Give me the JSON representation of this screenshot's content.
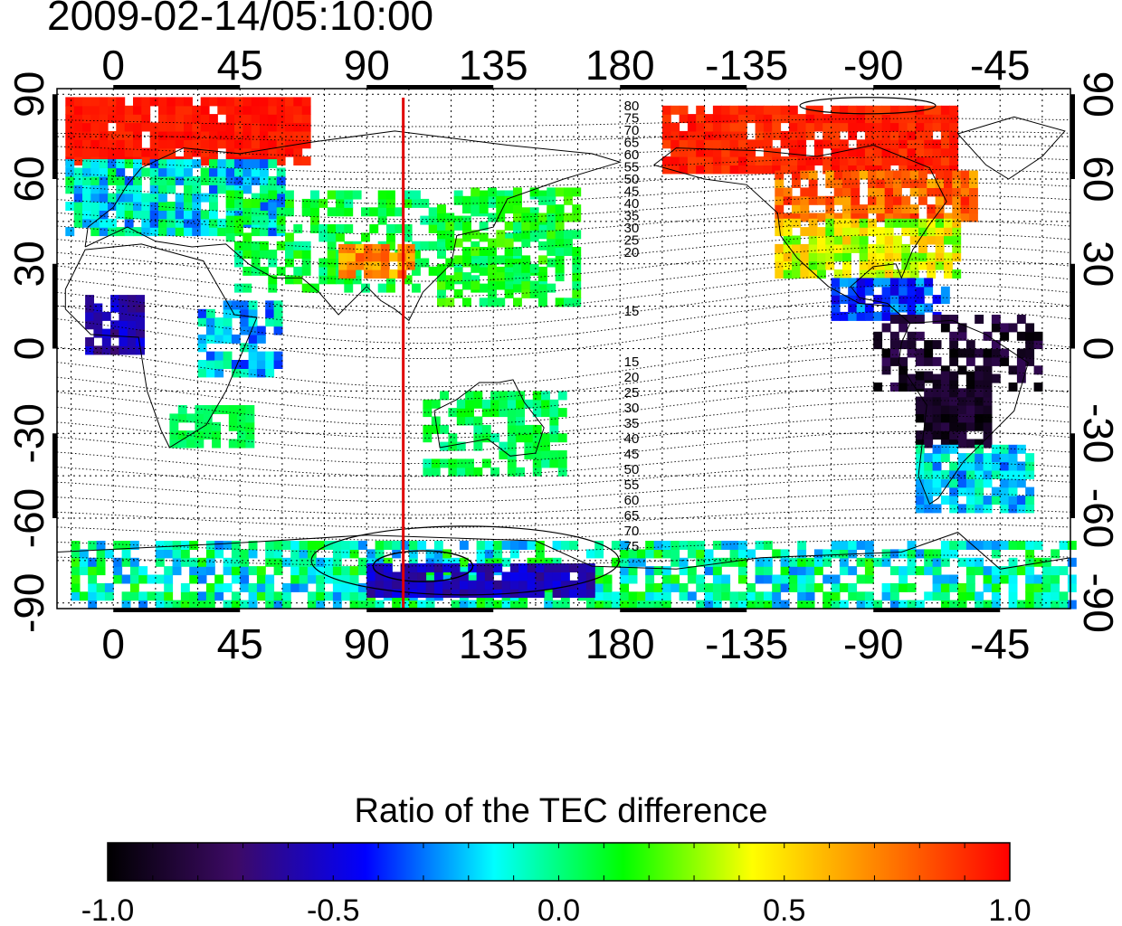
{
  "timestamp": "2009-02-14/05:10:00",
  "colorbar": {
    "title": "Ratio of the TEC difference",
    "min": -1.0,
    "max": 1.0,
    "tick_labels": [
      "-1.0",
      "-0.5",
      "0.0",
      "0.5",
      "1.0"
    ],
    "tick_values": [
      -1.0,
      -0.5,
      0.0,
      0.5,
      1.0
    ],
    "colormap": [
      "#000000",
      "#3d0a66",
      "#0000ff",
      "#00ffff",
      "#00ff00",
      "#ffff00",
      "#ff8000",
      "#ff0000"
    ]
  },
  "map": {
    "longitude_ticks": [
      "0",
      "45",
      "90",
      "135",
      "180",
      "-135",
      "-90",
      "-45"
    ],
    "longitude_tick_values": [
      0,
      45,
      90,
      135,
      180,
      225,
      270,
      315
    ],
    "latitude_ticks": [
      "90",
      "60",
      "30",
      "0",
      "-30",
      "-60",
      "-90"
    ],
    "latitude_tick_values": [
      90,
      60,
      30,
      0,
      -30,
      -60,
      -90
    ],
    "longitude_range": [
      -20,
      340
    ],
    "latitude_range": [
      -92,
      92
    ],
    "grid": true,
    "marker_line_longitude": 103,
    "marker_line_color": "#e00000",
    "north_contour_labels": [
      "80",
      "75",
      "70",
      "65",
      "60",
      "55",
      "50",
      "45",
      "40",
      "35",
      "30",
      "25",
      "20",
      "15"
    ],
    "south_contour_labels": [
      "15",
      "20",
      "25",
      "30",
      "35",
      "40",
      "45",
      "50",
      "55",
      "60",
      "65",
      "70",
      "75"
    ]
  }
}
